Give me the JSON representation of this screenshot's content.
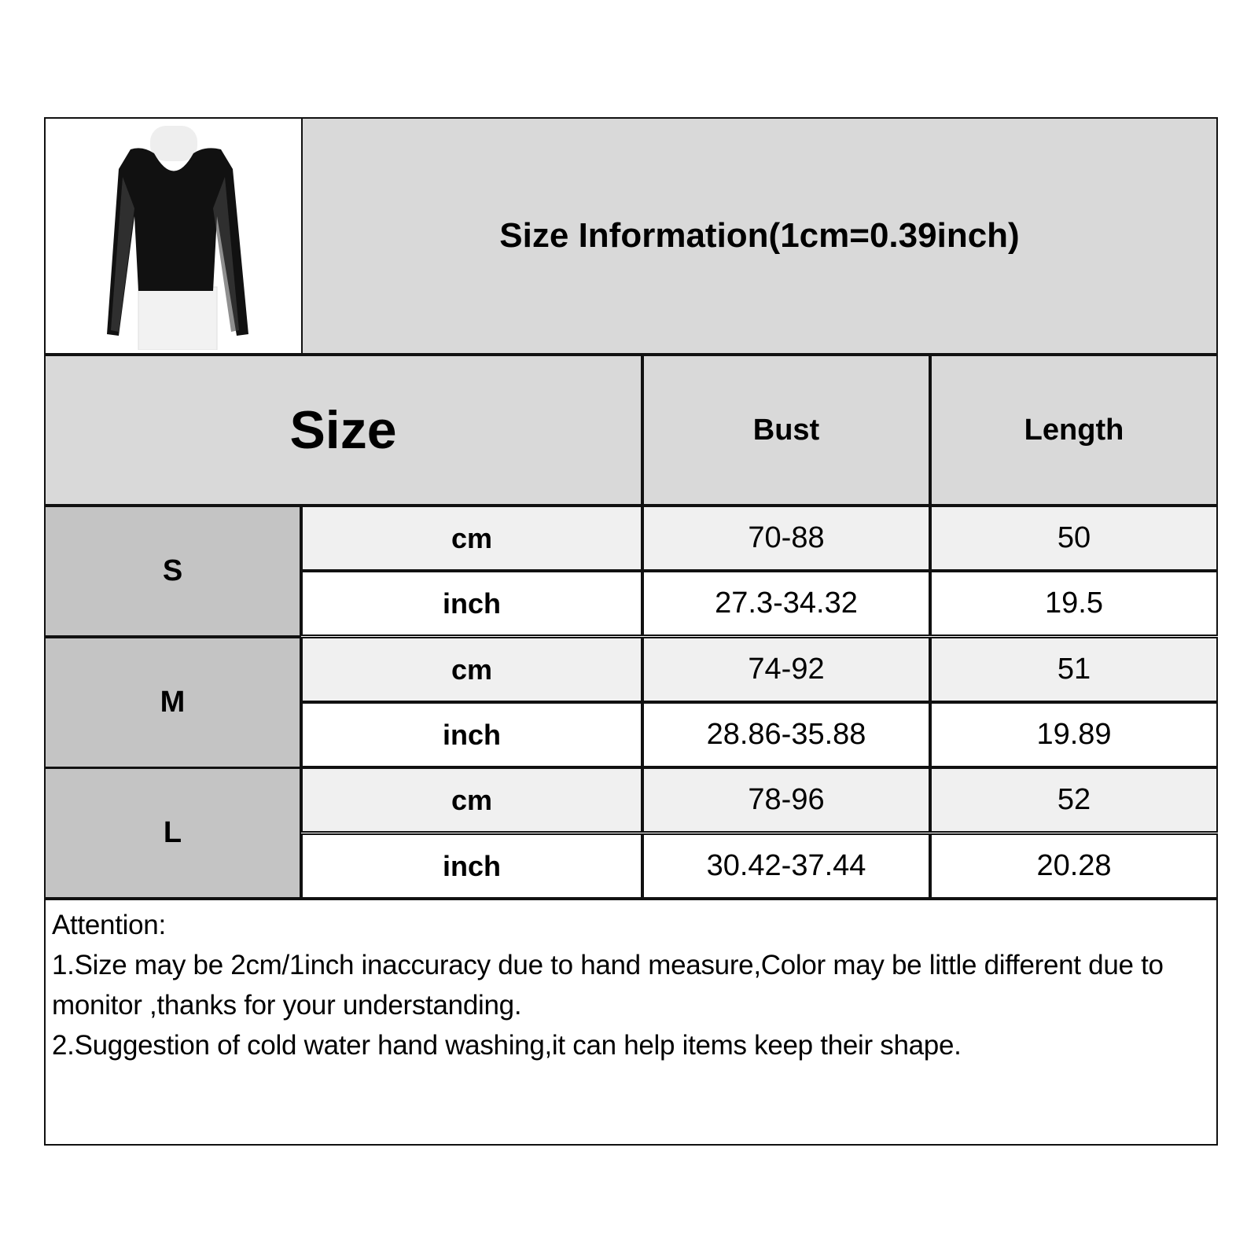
{
  "title": "Size Information(1cm=0.39inch)",
  "product_image": "black mesh long-sleeve top on mannequin",
  "header": {
    "size": "Size",
    "bust": "Bust",
    "length": "Length"
  },
  "rows": [
    {
      "size": "S",
      "cm": {
        "unit": "cm",
        "bust": "70-88",
        "length": "50"
      },
      "inch": {
        "unit": "inch",
        "bust": "27.3-34.32",
        "length": "19.5"
      }
    },
    {
      "size": "M",
      "cm": {
        "unit": "cm",
        "bust": "74-92",
        "length": "51"
      },
      "inch": {
        "unit": "inch",
        "bust": "28.86-35.88",
        "length": "19.89"
      }
    },
    {
      "size": "L",
      "cm": {
        "unit": "cm",
        "bust": "78-96",
        "length": "52"
      },
      "inch": {
        "unit": "inch",
        "bust": "30.42-37.44",
        "length": "20.28"
      }
    }
  ],
  "notes": {
    "heading": "Attention:",
    "line1": "1.Size may be 2cm/1inch inaccuracy due to hand measure,Color may be little different due to monitor ,thanks for your understanding.",
    "line2": "2.Suggestion of cold water hand washing,it can help items keep their shape."
  },
  "colors": {
    "header_bg": "#d9d9d9",
    "size_label_bg": "#c4c4c4",
    "cm_row_bg": "#f0f0f0",
    "inch_row_bg": "#ffffff",
    "border": "#111111"
  }
}
